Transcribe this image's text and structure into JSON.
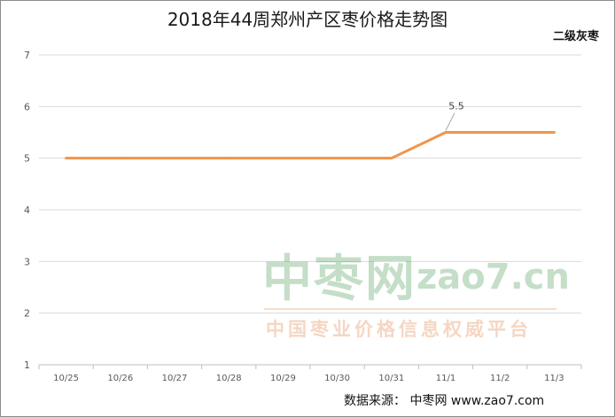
{
  "chart_data": {
    "type": "line",
    "title": "2018年44周郑州产区枣价格走势图",
    "categories": [
      "10/25",
      "10/26",
      "10/27",
      "10/28",
      "10/29",
      "10/30",
      "10/31",
      "11/1",
      "11/2",
      "11/3"
    ],
    "series": [
      {
        "name": "二级灰枣",
        "values": [
          5,
          5,
          5,
          5,
          5,
          5,
          5,
          5.5,
          5.5,
          5.5
        ],
        "color": "#f0954a"
      }
    ],
    "data_labels": [
      {
        "index": 7,
        "text": "5.5"
      }
    ],
    "ylim": [
      1,
      7
    ],
    "yticks": [
      "1",
      "2",
      "3",
      "4",
      "5",
      "6",
      "7"
    ],
    "grid": true,
    "xlabel": "",
    "ylabel": ""
  },
  "watermark": {
    "brand": "中枣网",
    "url": "zao7.cn",
    "slogan": "中国枣业价格信息权威平台"
  },
  "source": "数据来源：  中枣网 www.zao7.com"
}
